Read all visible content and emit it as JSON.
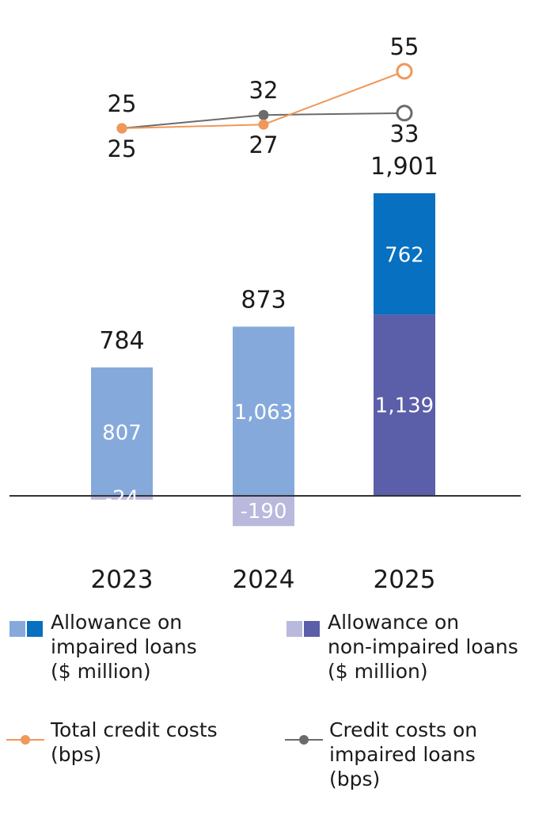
{
  "chart_data": {
    "type": "bar",
    "categories": [
      "2023",
      "2024",
      "2025"
    ],
    "series": [
      {
        "name": "Allowance on impaired loans ($ million)",
        "values": [
          807,
          1063,
          762
        ],
        "colors": [
          "#86a9dc",
          "#86a9dc",
          "#0770c0"
        ]
      },
      {
        "name": "Allowance on non-impaired loans ($ million)",
        "values": [
          -24,
          -190,
          1139
        ],
        "colors": [
          "#b9b8dd",
          "#b9b8dd",
          "#5b5ea8"
        ]
      }
    ],
    "totals": [
      784,
      873,
      1901
    ],
    "lines": [
      {
        "name": "Total credit costs (bps)",
        "values": [
          25,
          27,
          55
        ],
        "color": "#f0975a"
      },
      {
        "name": "Credit costs on impaired loans (bps)",
        "values": [
          25,
          32,
          33
        ],
        "color": "#6b6b6b"
      }
    ],
    "title": "",
    "xlabel": "",
    "ylabel": "",
    "grid": false,
    "legend_position": "bottom"
  },
  "legend": {
    "items": [
      {
        "lines": [
          "Allowance on",
          "impaired loans",
          "($ million)"
        ],
        "colors": [
          "#86a9dc",
          "#0770c0"
        ]
      },
      {
        "lines": [
          "Allowance on",
          "non-impaired loans",
          "($ million)"
        ],
        "colors": [
          "#b9b8dd",
          "#5b5ea8"
        ]
      },
      {
        "lines": [
          "Total credit costs",
          "(bps)"
        ],
        "color": "#f0975a"
      },
      {
        "lines": [
          "Credit costs on",
          "impaired loans",
          "(bps)"
        ],
        "color": "#6b6b6b"
      }
    ]
  }
}
